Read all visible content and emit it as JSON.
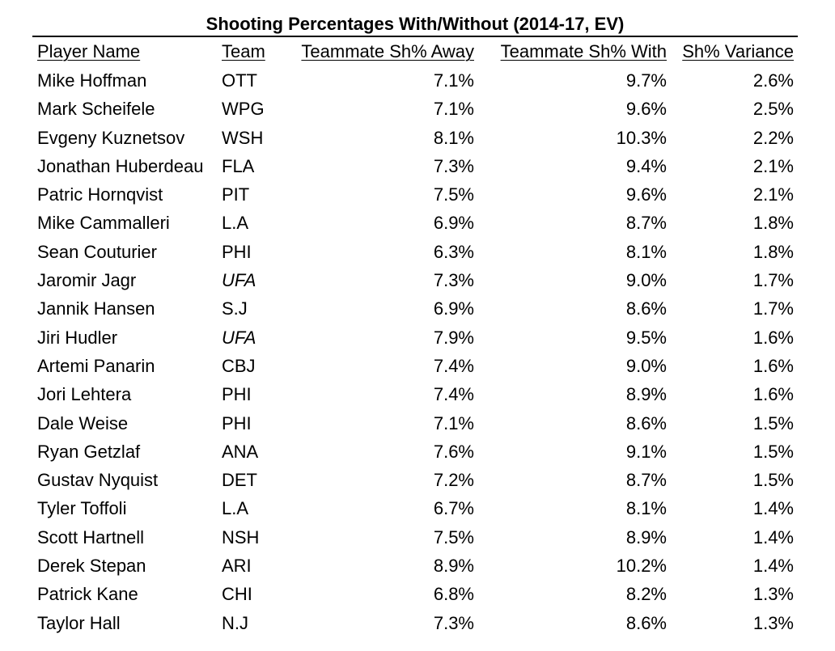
{
  "title": "Shooting Percentages With/Without (2014-17, EV)",
  "columns": {
    "player": "Player Name",
    "team": "Team",
    "away": "Teammate Sh% Away",
    "with": "Teammate Sh% With",
    "variance": "Sh% Variance"
  },
  "rows": [
    {
      "player": "Mike Hoffman",
      "team": "OTT",
      "italic_team": false,
      "away": "7.1%",
      "with": "9.7%",
      "variance": "2.6%"
    },
    {
      "player": "Mark Scheifele",
      "team": "WPG",
      "italic_team": false,
      "away": "7.1%",
      "with": "9.6%",
      "variance": "2.5%"
    },
    {
      "player": "Evgeny Kuznetsov",
      "team": "WSH",
      "italic_team": false,
      "away": "8.1%",
      "with": "10.3%",
      "variance": "2.2%"
    },
    {
      "player": "Jonathan Huberdeau",
      "team": "FLA",
      "italic_team": false,
      "away": "7.3%",
      "with": "9.4%",
      "variance": "2.1%"
    },
    {
      "player": "Patric Hornqvist",
      "team": "PIT",
      "italic_team": false,
      "away": "7.5%",
      "with": "9.6%",
      "variance": "2.1%"
    },
    {
      "player": "Mike Cammalleri",
      "team": "L.A",
      "italic_team": false,
      "away": "6.9%",
      "with": "8.7%",
      "variance": "1.8%"
    },
    {
      "player": "Sean Couturier",
      "team": "PHI",
      "italic_team": false,
      "away": "6.3%",
      "with": "8.1%",
      "variance": "1.8%"
    },
    {
      "player": "Jaromir Jagr",
      "team": "UFA",
      "italic_team": true,
      "away": "7.3%",
      "with": "9.0%",
      "variance": "1.7%"
    },
    {
      "player": "Jannik Hansen",
      "team": "S.J",
      "italic_team": false,
      "away": "6.9%",
      "with": "8.6%",
      "variance": "1.7%"
    },
    {
      "player": "Jiri Hudler",
      "team": "UFA",
      "italic_team": true,
      "away": "7.9%",
      "with": "9.5%",
      "variance": "1.6%"
    },
    {
      "player": "Artemi Panarin",
      "team": "CBJ",
      "italic_team": false,
      "away": "7.4%",
      "with": "9.0%",
      "variance": "1.6%"
    },
    {
      "player": "Jori Lehtera",
      "team": "PHI",
      "italic_team": false,
      "away": "7.4%",
      "with": "8.9%",
      "variance": "1.6%"
    },
    {
      "player": "Dale Weise",
      "team": "PHI",
      "italic_team": false,
      "away": "7.1%",
      "with": "8.6%",
      "variance": "1.5%"
    },
    {
      "player": "Ryan Getzlaf",
      "team": "ANA",
      "italic_team": false,
      "away": "7.6%",
      "with": "9.1%",
      "variance": "1.5%"
    },
    {
      "player": "Gustav Nyquist",
      "team": "DET",
      "italic_team": false,
      "away": "7.2%",
      "with": "8.7%",
      "variance": "1.5%"
    },
    {
      "player": "Tyler Toffoli",
      "team": "L.A",
      "italic_team": false,
      "away": "6.7%",
      "with": "8.1%",
      "variance": "1.4%"
    },
    {
      "player": "Scott Hartnell",
      "team": "NSH",
      "italic_team": false,
      "away": "7.5%",
      "with": "8.9%",
      "variance": "1.4%"
    },
    {
      "player": "Derek Stepan",
      "team": "ARI",
      "italic_team": false,
      "away": "8.9%",
      "with": "10.2%",
      "variance": "1.4%"
    },
    {
      "player": "Patrick Kane",
      "team": "CHI",
      "italic_team": false,
      "away": "6.8%",
      "with": "8.2%",
      "variance": "1.3%"
    },
    {
      "player": "Taylor Hall",
      "team": "N.J",
      "italic_team": false,
      "away": "7.3%",
      "with": "8.6%",
      "variance": "1.3%"
    }
  ]
}
